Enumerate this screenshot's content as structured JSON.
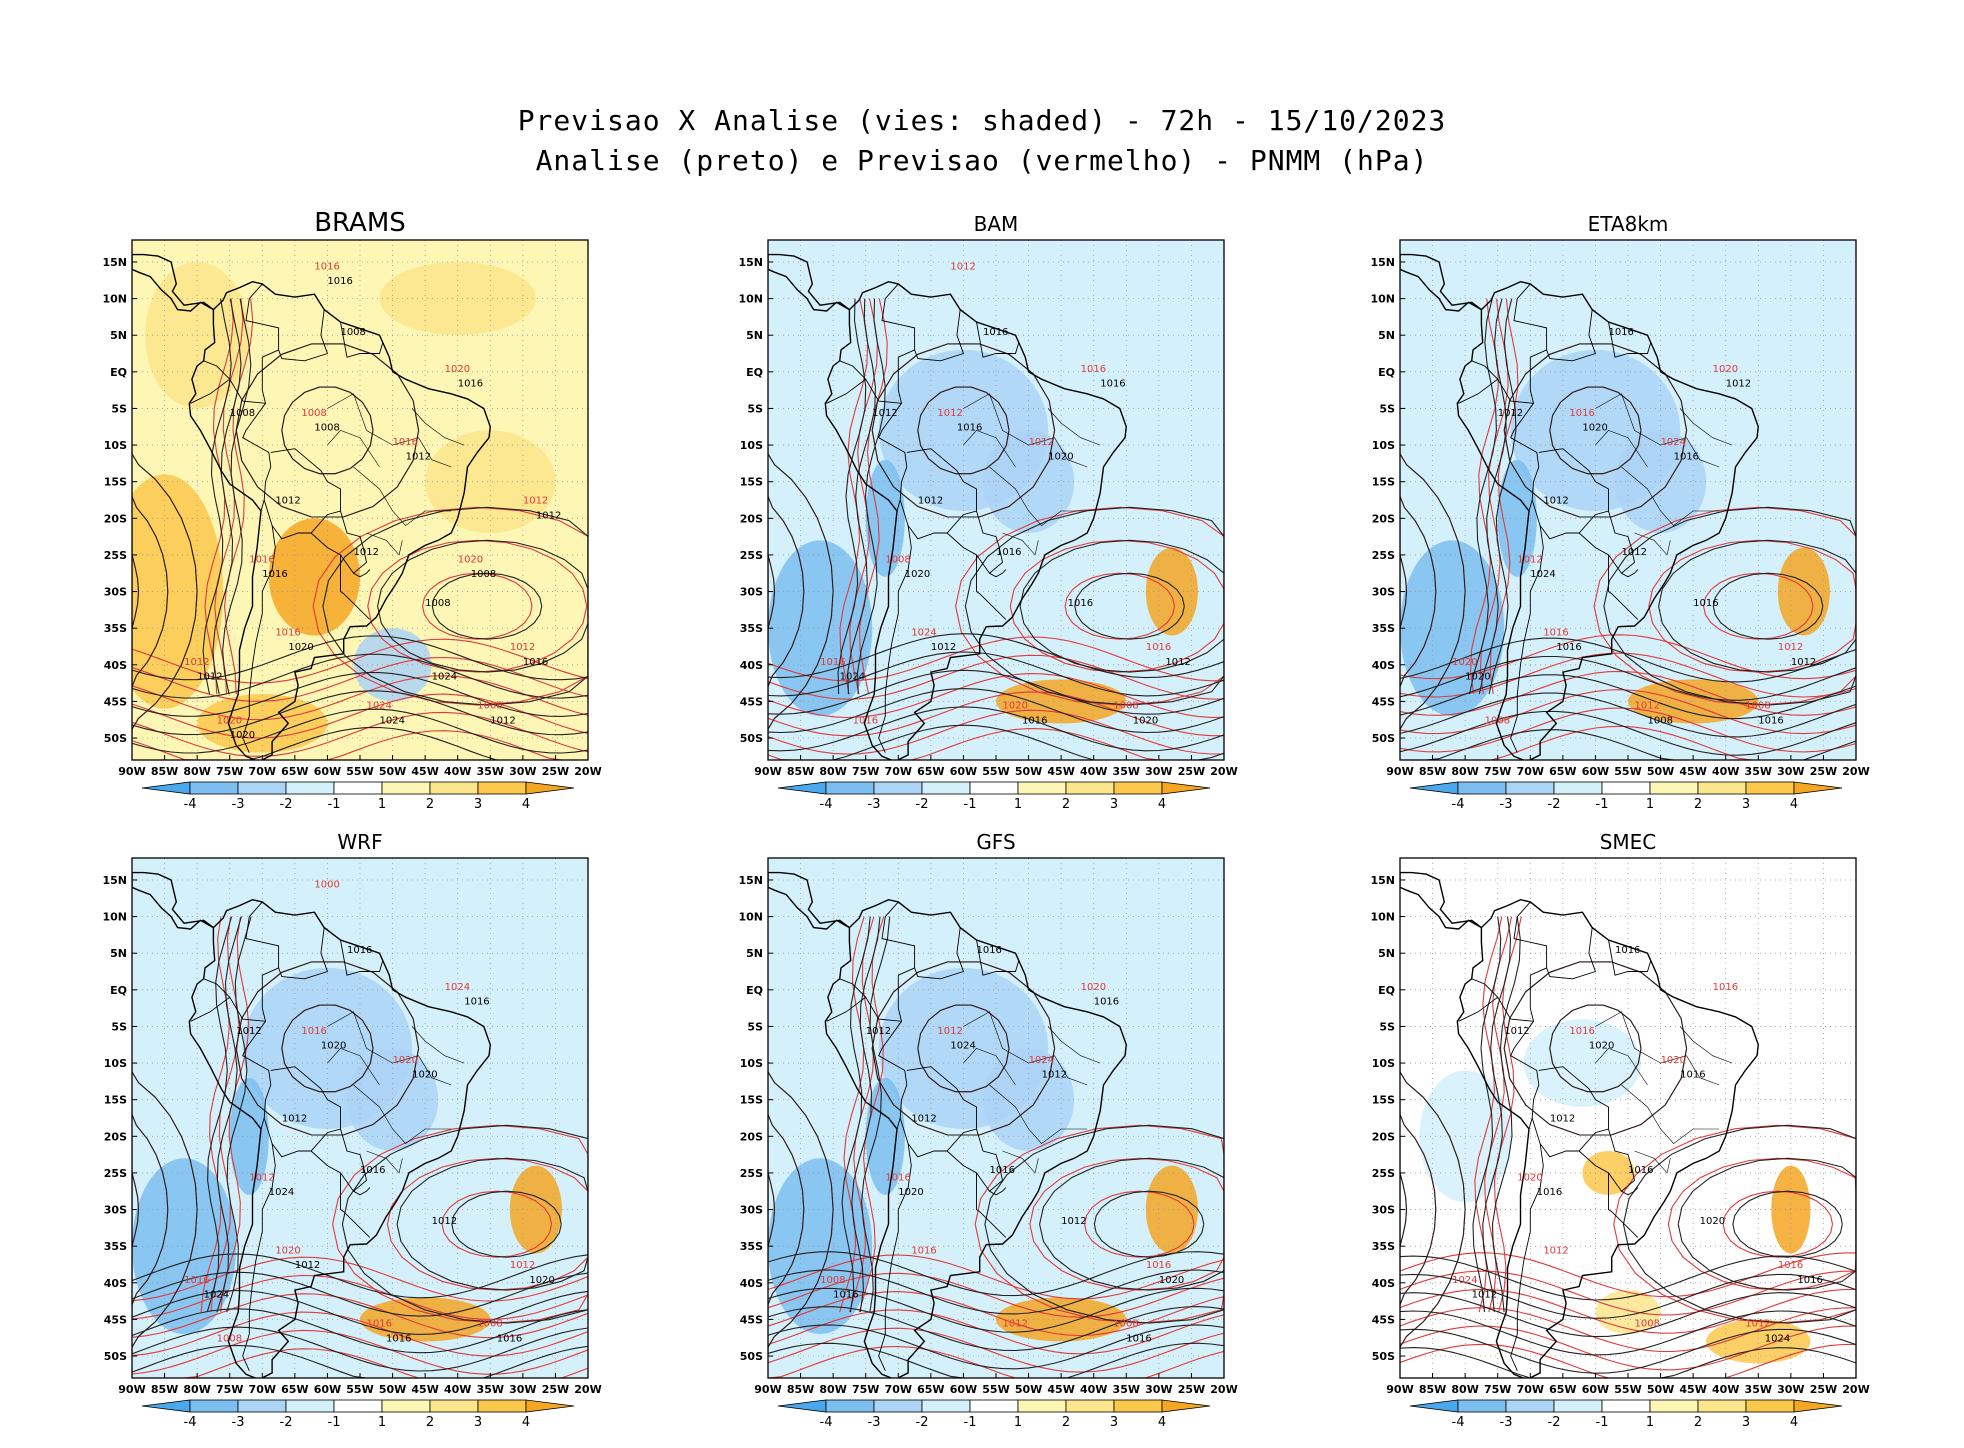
{
  "title_line1": "Previsao X Analise (vies: shaded) - 72h - 15/10/2023",
  "title_line2": "Analise (preto) e Previsao (vermelho) - PNMM (hPa)",
  "colorbar": {
    "labels": [
      "-4",
      "-3",
      "-2",
      "-1",
      "1",
      "2",
      "3",
      "4"
    ],
    "colors": [
      "#4aa8ec",
      "#7dbef0",
      "#acd4f6",
      "#d4f0fa",
      "#ffffff",
      "#fdf6b4",
      "#fde58c",
      "#fcc84c",
      "#f5a623"
    ]
  },
  "axes": {
    "lat_ticks": [
      "15N",
      "10N",
      "5N",
      "EQ",
      "5S",
      "10S",
      "15S",
      "20S",
      "25S",
      "30S",
      "35S",
      "40S",
      "45S",
      "50S"
    ],
    "lon_ticks": [
      "90W",
      "85W",
      "80W",
      "75W",
      "70W",
      "65W",
      "60W",
      "55W",
      "50W",
      "45W",
      "40W",
      "35W",
      "30W",
      "25W",
      "20W"
    ]
  },
  "panels": [
    {
      "name": "BRAMS",
      "bias": "warm",
      "labels_black": [
        "1008",
        "1008",
        "1012",
        "1012",
        "1008",
        "1016",
        "1012",
        "1008",
        "1016",
        "1012",
        "1012",
        "1016",
        "1020",
        "1024",
        "1020",
        "1016",
        "1012",
        "1008",
        "1024"
      ],
      "labels_red": [
        "1012",
        "1008",
        "1008",
        "1016",
        "1012",
        "1016",
        "1020",
        "1016",
        "1024",
        "1020",
        "1016",
        "1012",
        "1020"
      ]
    },
    {
      "name": "BAM",
      "bias": "cold",
      "labels_black": [
        "1016",
        "1012",
        "1012",
        "1016",
        "1016",
        "1012",
        "1020",
        "1016",
        "1020",
        "1024",
        "1020",
        "1016",
        "1012",
        "1016"
      ],
      "labels_red": [
        "1016",
        "1008",
        "1012",
        "1008",
        "1016",
        "1012",
        "1016",
        "1024",
        "1020",
        "1016",
        "1012"
      ]
    },
    {
      "name": "ETA8km",
      "bias": "cold",
      "labels_black": [
        "1016",
        "1012",
        "1012",
        "1012",
        "1016",
        "1012",
        "1016",
        "1020",
        "1024",
        "1020",
        "1016",
        "1012",
        "1016",
        "1008"
      ],
      "labels_red": [
        "1012",
        "1008",
        "1016",
        "1012",
        "1020",
        "1024",
        "1020",
        "1016",
        "1012",
        "1008"
      ]
    },
    {
      "name": "WRF",
      "bias": "cold",
      "labels_black": [
        "1016",
        "1012",
        "1012",
        "1016",
        "1012",
        "1020",
        "1016",
        "1020",
        "1024",
        "1024",
        "1020",
        "1016",
        "1012",
        "1016"
      ],
      "labels_red": [
        "1012",
        "1008",
        "1016",
        "1012",
        "1016",
        "1020",
        "1024",
        "1020",
        "1016",
        "1008",
        "1000"
      ]
    },
    {
      "name": "GFS",
      "bias": "cold",
      "labels_black": [
        "1016",
        "1012",
        "1012",
        "1016",
        "1012",
        "1020",
        "1016",
        "1024",
        "1020",
        "1016",
        "1012",
        "1016"
      ],
      "labels_red": [
        "1016",
        "1008",
        "1012",
        "1016",
        "1008",
        "1024",
        "1020",
        "1016",
        "1012"
      ]
    },
    {
      "name": "SMEC",
      "bias": "neutral",
      "labels_black": [
        "1016",
        "1012",
        "1012",
        "1016",
        "1020",
        "1016",
        "1024",
        "1020",
        "1016",
        "1012",
        "1016"
      ],
      "labels_red": [
        "1016",
        "1012",
        "1016",
        "1020",
        "1024",
        "1020",
        "1016",
        "1012",
        "1008"
      ]
    }
  ]
}
